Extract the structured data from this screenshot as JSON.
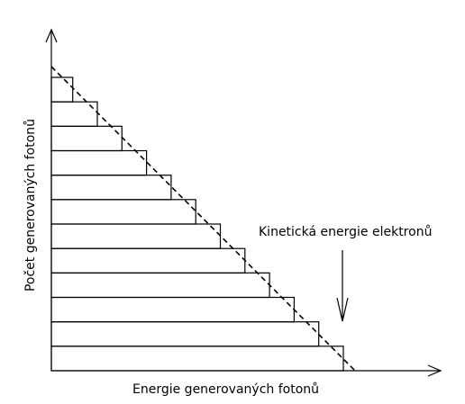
{
  "diagram": {
    "xlabel": "Energie generovaných fotonů",
    "ylabel": "Počet generovaných fotonů",
    "annotation": "Kinetická energie elektronů",
    "steps": 12,
    "line_color": "#000000"
  }
}
